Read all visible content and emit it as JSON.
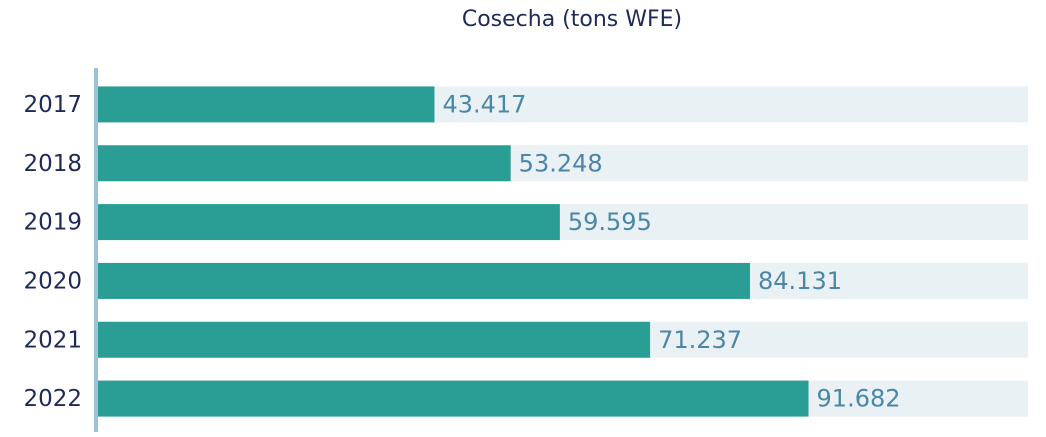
{
  "chart_data": {
    "type": "bar",
    "orientation": "horizontal",
    "title": "Cosecha (tons WFE)",
    "categories": [
      "2017",
      "2018",
      "2019",
      "2020",
      "2021",
      "2022"
    ],
    "values": [
      43417,
      53248,
      59595,
      84131,
      71237,
      91682
    ],
    "value_labels": [
      "43.417",
      "53.248",
      "59.595",
      "84.131",
      "71.237",
      "91.682"
    ],
    "color": "#2a9d94",
    "track_color": "#eaf1f5",
    "label_color": "#4a87a6",
    "xlim": [
      0,
      120000
    ]
  }
}
